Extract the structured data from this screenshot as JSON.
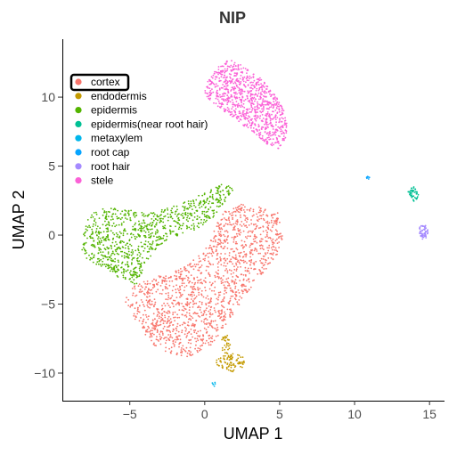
{
  "chart_data": {
    "type": "scatter",
    "title": "NIP",
    "xlabel": "UMAP 1",
    "ylabel": "UMAP 2",
    "xlim": [
      -9.5,
      16
    ],
    "ylim": [
      -12,
      14.2
    ],
    "xticks": [
      -5,
      0,
      5,
      10,
      15
    ],
    "yticks": [
      -10,
      -5,
      0,
      5,
      10
    ],
    "xtick_labels": [
      "−5",
      "0",
      "5",
      "10",
      "15"
    ],
    "ytick_labels": [
      "−10",
      "−5",
      "0",
      "5",
      "10"
    ],
    "grid": false,
    "legend_position": "top-left",
    "highlighted_legend_entry": "cortex",
    "series": [
      {
        "name": "cortex",
        "color": "#F8766D",
        "clusters": [
          {
            "type": "poly",
            "n": 1500,
            "poly": [
              [
                -5.2,
                -4.2
              ],
              [
                -4.5,
                -3.5
              ],
              [
                -3.3,
                -3.0
              ],
              [
                -2.3,
                -2.8
              ],
              [
                -1.5,
                -2.2
              ],
              [
                -0.5,
                -1.6
              ],
              [
                0.3,
                -0.6
              ],
              [
                0.8,
                0.8
              ],
              [
                1.5,
                2.0
              ],
              [
                2.5,
                2.3
              ],
              [
                3.8,
                2.0
              ],
              [
                4.9,
                1.6
              ],
              [
                5.3,
                0.2
              ],
              [
                4.9,
                -1.4
              ],
              [
                4.0,
                -2.6
              ],
              [
                3.0,
                -4.0
              ],
              [
                2.0,
                -5.6
              ],
              [
                1.0,
                -7.2
              ],
              [
                0.2,
                -8.4
              ],
              [
                -1.3,
                -8.9
              ],
              [
                -2.8,
                -8.4
              ],
              [
                -3.9,
                -7.6
              ],
              [
                -4.6,
                -6.2
              ],
              [
                -5.3,
                -5.1
              ]
            ]
          }
        ]
      },
      {
        "name": "endodermis",
        "color": "#C49A00",
        "clusters": [
          {
            "type": "ellipse",
            "n": 90,
            "cx": 1.7,
            "cy": -9.2,
            "rx": 1.0,
            "ry": 0.7
          },
          {
            "type": "ellipse",
            "n": 30,
            "cx": 1.4,
            "cy": -7.9,
            "rx": 0.3,
            "ry": 0.7
          }
        ]
      },
      {
        "name": "epidermis",
        "color": "#53B400",
        "clusters": [
          {
            "type": "poly",
            "n": 900,
            "poly": [
              [
                -8.3,
                -1.6
              ],
              [
                -8.0,
                0.8
              ],
              [
                -7.6,
                1.6
              ],
              [
                -6.5,
                2.0
              ],
              [
                -5.0,
                1.8
              ],
              [
                -3.5,
                1.6
              ],
              [
                -2.2,
                2.1
              ],
              [
                -1.0,
                2.6
              ],
              [
                0.3,
                3.2
              ],
              [
                1.3,
                3.8
              ],
              [
                2.0,
                3.3
              ],
              [
                1.2,
                2.2
              ],
              [
                0.5,
                1.2
              ],
              [
                -0.5,
                0.4
              ],
              [
                -2.0,
                -0.1
              ],
              [
                -3.2,
                -0.9
              ],
              [
                -4.0,
                -2.2
              ],
              [
                -4.5,
                -3.6
              ],
              [
                -5.6,
                -3.2
              ],
              [
                -6.6,
                -2.4
              ],
              [
                -7.7,
                -1.9
              ]
            ]
          }
        ]
      },
      {
        "name": "epidermis(near root hair)",
        "color": "#00C094",
        "clusters": [
          {
            "type": "ellipse",
            "n": 45,
            "cx": 13.9,
            "cy": 3.0,
            "rx": 0.35,
            "ry": 0.55
          }
        ]
      },
      {
        "name": "metaxylem",
        "color": "#00B6EB",
        "clusters": [
          {
            "type": "ellipse",
            "n": 6,
            "cx": 0.6,
            "cy": -10.8,
            "rx": 0.15,
            "ry": 0.15
          }
        ]
      },
      {
        "name": "root cap",
        "color": "#06A4FF",
        "clusters": [
          {
            "type": "ellipse",
            "n": 8,
            "cx": 10.9,
            "cy": 4.1,
            "rx": 0.15,
            "ry": 0.15
          }
        ]
      },
      {
        "name": "root hair",
        "color": "#A58AFF",
        "clusters": [
          {
            "type": "ellipse",
            "n": 60,
            "cx": 14.6,
            "cy": 0.25,
            "rx": 0.3,
            "ry": 0.55
          }
        ]
      },
      {
        "name": "stele",
        "color": "#FB61D7",
        "clusters": [
          {
            "type": "poly",
            "n": 900,
            "poly": [
              [
                -0.1,
                10.2
              ],
              [
                0.3,
                11.4
              ],
              [
                1.0,
                12.3
              ],
              [
                1.7,
                12.8
              ],
              [
                2.7,
                12.2
              ],
              [
                3.8,
                11.3
              ],
              [
                4.8,
                10.0
              ],
              [
                5.5,
                8.6
              ],
              [
                5.5,
                7.2
              ],
              [
                4.9,
                6.2
              ],
              [
                4.0,
                6.7
              ],
              [
                3.1,
                7.5
              ],
              [
                2.0,
                8.4
              ],
              [
                0.9,
                9.3
              ]
            ]
          }
        ]
      }
    ]
  }
}
